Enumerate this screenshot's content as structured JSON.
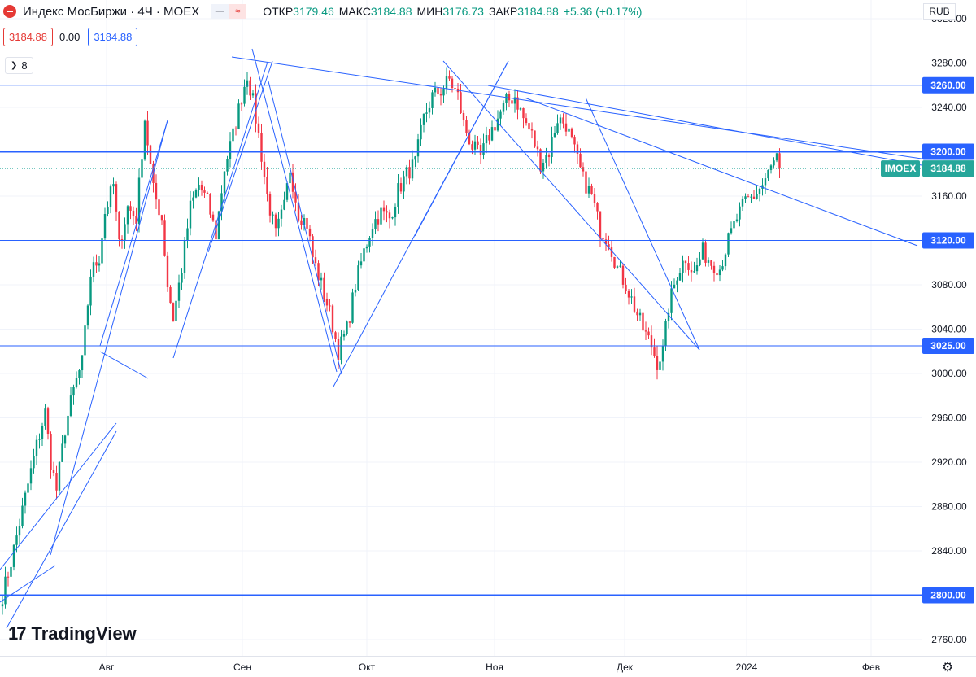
{
  "header": {
    "title": "Индекс МосБиржи · 4Ч · MOEX",
    "open_label": "ОТКР",
    "open": "3179.46",
    "high_label": "МАКС",
    "high": "3184.88",
    "low_label": "МИН",
    "low": "3176.73",
    "close_label": "ЗАКР",
    "close": "3184.88",
    "change": "+5.36 (+0.17%)",
    "toggle_a": "—",
    "toggle_b": "≈"
  },
  "quote": {
    "bid": "3184.88",
    "spread": "0.00",
    "ask": "3184.88"
  },
  "indicator_count": "8",
  "currency": "RUB",
  "watermark": "TradingView",
  "colors": {
    "up": "#089981",
    "down": "#f23645",
    "line": "#2962ff",
    "price_tag": "#26a69a"
  },
  "chart_data": {
    "type": "candlestick",
    "symbol": "IMOEX",
    "last_price": 3184.88,
    "ylim": [
      2745,
      3325
    ],
    "y_ticks": [
      2760,
      2800,
      2840,
      2880,
      2920,
      2960,
      3000,
      3040,
      3080,
      3120,
      3160,
      3200,
      3240,
      3280,
      3320
    ],
    "y_tick_labels": [
      "2760.00",
      "2800.00",
      "2840.00",
      "2880.00",
      "2920.00",
      "2960.00",
      "3000.00",
      "3040.00",
      "3080.00",
      "3120.00",
      "3160.00",
      "3200.00",
      "3240.00",
      "3280.00",
      "3320.00"
    ],
    "x_tick_labels": [
      "Авг",
      "Сен",
      "Окт",
      "Ноя",
      "Дек",
      "2024",
      "Фев"
    ],
    "horizontal_levels": [
      3260,
      3200,
      3120,
      3025,
      2800
    ],
    "horizontal_level_labels": [
      "3260.00",
      "3200.00",
      "3120.00",
      "3025.00",
      "2800.00"
    ],
    "anchors": [
      [
        0,
        2800
      ],
      [
        3,
        2830
      ],
      [
        6,
        2865
      ],
      [
        9,
        2900
      ],
      [
        12,
        2935
      ],
      [
        15,
        2965
      ],
      [
        17,
        2920
      ],
      [
        19,
        2895
      ],
      [
        22,
        2950
      ],
      [
        25,
        2985
      ],
      [
        28,
        3010
      ],
      [
        31,
        3090
      ],
      [
        34,
        3105
      ],
      [
        36,
        3145
      ],
      [
        39,
        3170
      ],
      [
        41,
        3115
      ],
      [
        44,
        3150
      ],
      [
        47,
        3140
      ],
      [
        50,
        3230
      ],
      [
        53,
        3165
      ],
      [
        56,
        3140
      ],
      [
        58,
        3080
      ],
      [
        60,
        3050
      ],
      [
        63,
        3095
      ],
      [
        66,
        3150
      ],
      [
        69,
        3170
      ],
      [
        72,
        3155
      ],
      [
        75,
        3125
      ],
      [
        78,
        3185
      ],
      [
        81,
        3215
      ],
      [
        84,
        3250
      ],
      [
        86,
        3270
      ],
      [
        88,
        3245
      ],
      [
        90,
        3215
      ],
      [
        93,
        3160
      ],
      [
        96,
        3125
      ],
      [
        99,
        3150
      ],
      [
        101,
        3185
      ],
      [
        104,
        3145
      ],
      [
        107,
        3135
      ],
      [
        109,
        3105
      ],
      [
        112,
        3080
      ],
      [
        115,
        3055
      ],
      [
        118,
        3020
      ],
      [
        121,
        3040
      ],
      [
        124,
        3080
      ],
      [
        127,
        3110
      ],
      [
        130,
        3135
      ],
      [
        133,
        3145
      ],
      [
        136,
        3140
      ],
      [
        139,
        3165
      ],
      [
        142,
        3180
      ],
      [
        145,
        3190
      ],
      [
        148,
        3230
      ],
      [
        151,
        3250
      ],
      [
        154,
        3255
      ],
      [
        157,
        3265
      ],
      [
        160,
        3250
      ],
      [
        162,
        3225
      ],
      [
        165,
        3205
      ],
      [
        168,
        3195
      ],
      [
        171,
        3215
      ],
      [
        174,
        3230
      ],
      [
        177,
        3245
      ],
      [
        180,
        3250
      ],
      [
        183,
        3230
      ],
      [
        186,
        3215
      ],
      [
        189,
        3190
      ],
      [
        192,
        3200
      ],
      [
        195,
        3230
      ],
      [
        198,
        3225
      ],
      [
        201,
        3200
      ],
      [
        204,
        3175
      ],
      [
        207,
        3160
      ],
      [
        210,
        3130
      ],
      [
        213,
        3120
      ],
      [
        216,
        3095
      ],
      [
        219,
        3080
      ],
      [
        222,
        3060
      ],
      [
        225,
        3040
      ],
      [
        228,
        3025
      ],
      [
        230,
        3010
      ],
      [
        232,
        3020
      ],
      [
        234,
        3060
      ],
      [
        237,
        3090
      ],
      [
        240,
        3105
      ],
      [
        243,
        3090
      ],
      [
        246,
        3110
      ],
      [
        249,
        3100
      ],
      [
        252,
        3095
      ],
      [
        255,
        3120
      ],
      [
        258,
        3140
      ],
      [
        261,
        3155
      ],
      [
        264,
        3160
      ],
      [
        267,
        3170
      ],
      [
        270,
        3185
      ],
      [
        272,
        3195
      ],
      [
        273,
        3185
      ]
    ]
  }
}
